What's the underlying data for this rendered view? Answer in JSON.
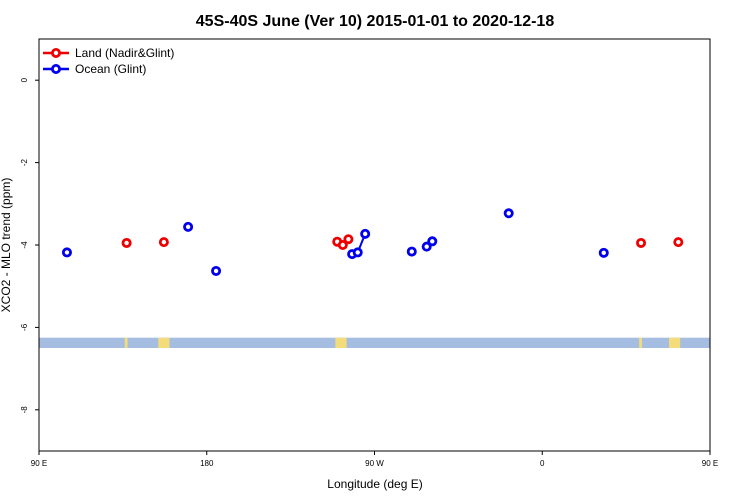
{
  "chart_data": {
    "type": "scatter",
    "title": "45S-40S June (Ver 10)   2015-01-01 to 2020-12-18",
    "xlabel": "Longitude (deg E)",
    "ylabel": "XCO2 - MLO trend (ppm)",
    "xlim": [
      90,
      450
    ],
    "ylim": [
      -9,
      1
    ],
    "x_ticks": [
      {
        "value": 90,
        "label": "90 E"
      },
      {
        "value": 180,
        "label": "180"
      },
      {
        "value": 270,
        "label": "90 W"
      },
      {
        "value": 360,
        "label": "0"
      },
      {
        "value": 450,
        "label": "90 E"
      },
      {
        "value": 540,
        "label": "180"
      }
    ],
    "y_ticks": [
      {
        "value": 0,
        "label": "0"
      },
      {
        "value": -2,
        "label": "-2"
      },
      {
        "value": -4,
        "label": "-4"
      },
      {
        "value": -6,
        "label": "-6"
      },
      {
        "value": -8,
        "label": "-8"
      }
    ],
    "legend_position": "top-left",
    "series": [
      {
        "name": "Land (Nadir&Glint)",
        "color": "#ee0000",
        "points": [
          {
            "x": 137,
            "y": -3.95
          },
          {
            "x": 157,
            "y": -3.93
          },
          {
            "x": 250,
            "y": -3.92
          },
          {
            "x": 253,
            "y": -4.0
          },
          {
            "x": 256,
            "y": -3.86
          },
          {
            "x": 413,
            "y": -3.95
          },
          {
            "x": 433,
            "y": -3.93
          }
        ]
      },
      {
        "name": "Ocean (Glint)",
        "color": "#0000ee",
        "points": [
          {
            "x": 105,
            "y": -4.18
          },
          {
            "x": 170,
            "y": -3.56
          },
          {
            "x": 185,
            "y": -4.63
          },
          {
            "x": 258,
            "y": -4.22
          },
          {
            "x": 261,
            "y": -4.18
          },
          {
            "x": 265,
            "y": -3.73
          },
          {
            "x": 290,
            "y": -4.16
          },
          {
            "x": 298,
            "y": -4.04
          },
          {
            "x": 301,
            "y": -3.91
          },
          {
            "x": 342,
            "y": -3.23
          },
          {
            "x": 393,
            "y": -4.19
          }
        ],
        "connected_segment": [
          3,
          5
        ]
      }
    ],
    "band": {
      "y_range": [
        -6.5,
        -6.25
      ],
      "ocean_color": "#a5bde0",
      "land_color": "#f5dc7a",
      "land_x": [
        [
          136,
          137.5
        ],
        [
          154,
          160
        ],
        [
          249,
          255
        ],
        [
          412,
          413.5
        ],
        [
          428,
          434
        ]
      ]
    }
  }
}
